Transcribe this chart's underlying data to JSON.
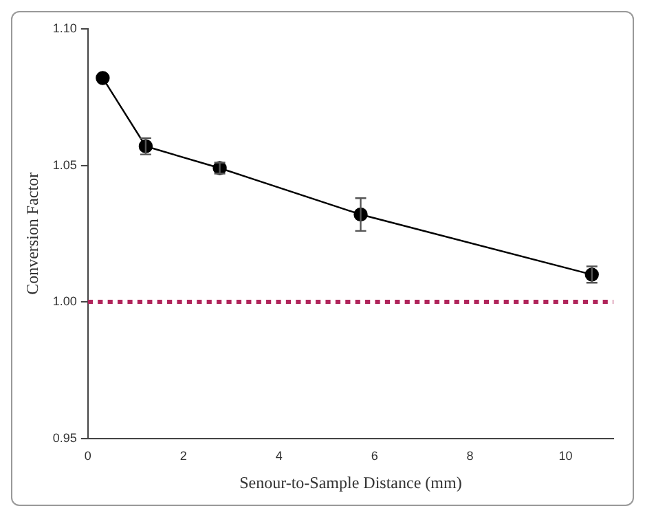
{
  "chart_data": {
    "type": "line",
    "xlabel": "Senour-to-Sample Distance (mm)",
    "ylabel": "Conversion Factor",
    "x": [
      0.31,
      1.21,
      2.76,
      5.71,
      10.55
    ],
    "series": [
      {
        "color": "#000000",
        "values": [
          1.082,
          1.057,
          1.049,
          1.032,
          1.01
        ],
        "errors": [
          null,
          0.003,
          0.002,
          0.006,
          0.003
        ]
      }
    ],
    "xlim": [
      0,
      11
    ],
    "xticks": [
      0,
      2,
      4,
      6,
      8,
      10
    ],
    "ylim": [
      0.95,
      1.1
    ],
    "yticks": [
      {
        "value": 0.95,
        "label": "0.95"
      },
      {
        "value": 1.0,
        "label": "1.00"
      },
      {
        "value": 1.05,
        "label": "1.05"
      },
      {
        "value": 1.1,
        "label": "1.10"
      }
    ],
    "ref_lines": [
      {
        "axis": "y",
        "value": 1.0,
        "color": "#b0245a",
        "line_style": "dotted"
      }
    ],
    "grid": false,
    "legend": false,
    "marker": "circle",
    "line_style": "solid"
  }
}
